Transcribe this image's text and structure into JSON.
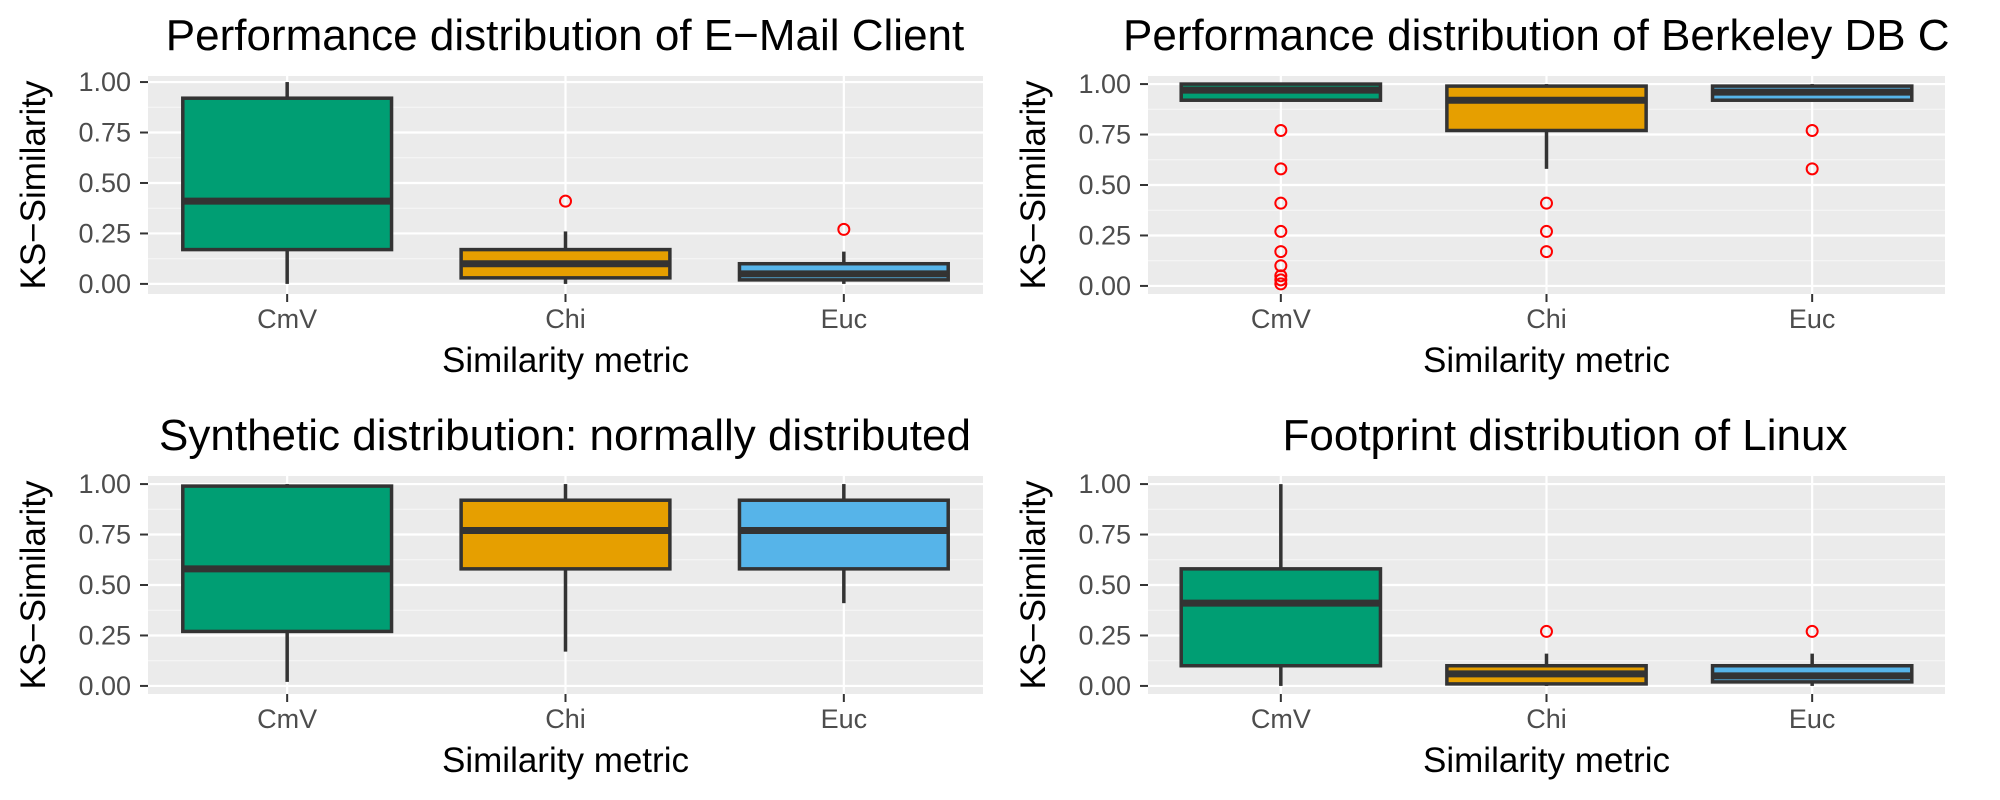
{
  "chart_data": [
    {
      "type": "box",
      "title": "Performance distribution of E−Mail Client",
      "xlabel": "Similarity metric",
      "ylabel": "KS−Similarity",
      "ylim": [
        -0.05,
        1.03
      ],
      "yticks": [
        "0.00",
        "0.25",
        "0.50",
        "0.75",
        "1.00"
      ],
      "categories": [
        "CmV",
        "Chi",
        "Euc"
      ],
      "boxes": [
        {
          "name": "CmV",
          "whisker_low": 0.0,
          "q1": 0.17,
          "median": 0.41,
          "q3": 0.92,
          "whisker_high": 1.0,
          "outliers": []
        },
        {
          "name": "Chi",
          "whisker_low": 0.0,
          "q1": 0.03,
          "median": 0.1,
          "q3": 0.17,
          "whisker_high": 0.26,
          "outliers": [
            0.41
          ]
        },
        {
          "name": "Euc",
          "whisker_low": 0.0,
          "q1": 0.02,
          "median": 0.05,
          "q3": 0.1,
          "whisker_high": 0.16,
          "outliers": [
            0.27
          ]
        }
      ],
      "grid": true
    },
    {
      "type": "box",
      "title": "Performance distribution of Berkeley DB C",
      "xlabel": "Similarity metric",
      "ylabel": "KS−Similarity",
      "ylim": [
        -0.04,
        1.04
      ],
      "yticks": [
        "0.00",
        "0.25",
        "0.50",
        "0.75",
        "1.00"
      ],
      "categories": [
        "CmV",
        "Chi",
        "Euc"
      ],
      "boxes": [
        {
          "name": "CmV",
          "whisker_low": 0.92,
          "q1": 0.92,
          "median": 0.97,
          "q3": 1.0,
          "whisker_high": 1.0,
          "outliers": [
            0.77,
            0.58,
            0.41,
            0.27,
            0.17,
            0.1,
            0.05,
            0.03,
            0.01
          ]
        },
        {
          "name": "Chi",
          "whisker_low": 0.58,
          "q1": 0.77,
          "median": 0.92,
          "q3": 0.99,
          "whisker_high": 1.0,
          "outliers": [
            0.41,
            0.27,
            0.17
          ]
        },
        {
          "name": "Euc",
          "whisker_low": 0.92,
          "q1": 0.92,
          "median": 0.96,
          "q3": 0.99,
          "whisker_high": 1.0,
          "outliers": [
            0.77,
            0.58
          ]
        }
      ],
      "grid": true
    },
    {
      "type": "box",
      "title": "Synthetic distribution: normally distributed",
      "xlabel": "Similarity metric",
      "ylabel": "KS−Similarity",
      "ylim": [
        -0.04,
        1.04
      ],
      "yticks": [
        "0.00",
        "0.25",
        "0.50",
        "0.75",
        "1.00"
      ],
      "categories": [
        "CmV",
        "Chi",
        "Euc"
      ],
      "boxes": [
        {
          "name": "CmV",
          "whisker_low": 0.02,
          "q1": 0.27,
          "median": 0.58,
          "q3": 0.99,
          "whisker_high": 1.0,
          "outliers": []
        },
        {
          "name": "Chi",
          "whisker_low": 0.17,
          "q1": 0.58,
          "median": 0.77,
          "q3": 0.92,
          "whisker_high": 1.0,
          "outliers": []
        },
        {
          "name": "Euc",
          "whisker_low": 0.41,
          "q1": 0.58,
          "median": 0.77,
          "q3": 0.92,
          "whisker_high": 1.0,
          "outliers": []
        }
      ],
      "grid": true
    },
    {
      "type": "box",
      "title": "Footprint distribution of Linux",
      "xlabel": "Similarity metric",
      "ylabel": "KS−Similarity",
      "ylim": [
        -0.04,
        1.04
      ],
      "yticks": [
        "0.00",
        "0.25",
        "0.50",
        "0.75",
        "1.00"
      ],
      "categories": [
        "CmV",
        "Chi",
        "Euc"
      ],
      "boxes": [
        {
          "name": "CmV",
          "whisker_low": 0.0,
          "q1": 0.1,
          "median": 0.41,
          "q3": 0.58,
          "whisker_high": 1.0,
          "outliers": []
        },
        {
          "name": "Chi",
          "whisker_low": 0.0,
          "q1": 0.01,
          "median": 0.06,
          "q3": 0.1,
          "whisker_high": 0.16,
          "outliers": [
            0.27
          ]
        },
        {
          "name": "Euc",
          "whisker_low": 0.0,
          "q1": 0.02,
          "median": 0.05,
          "q3": 0.1,
          "whisker_high": 0.16,
          "outliers": [
            0.27
          ]
        }
      ],
      "grid": true
    }
  ],
  "colors": {
    "panel_background": "#ebebeb",
    "grid_major": "#ffffff",
    "grid_minor": "#f5f5f5",
    "box_outline": "#333333",
    "outlier": "#ff0000",
    "tick_label": "#4d4d4d",
    "fills": [
      "#009e73",
      "#e69f00",
      "#56b4e9"
    ]
  }
}
